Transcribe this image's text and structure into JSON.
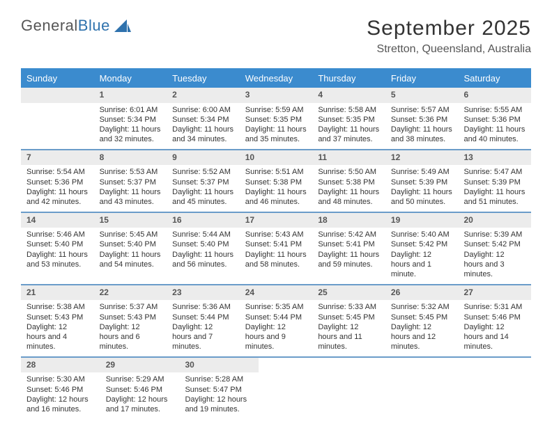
{
  "logo": {
    "text_a": "General",
    "text_b": "Blue",
    "text_color_a": "#565656",
    "text_color_b": "#2f72ad",
    "shape_color": "#2f72ad"
  },
  "title": {
    "month": "September 2025",
    "location": "Stretton, Queensland, Australia",
    "month_fontsize": 30,
    "loc_fontsize": 16
  },
  "colors": {
    "header_bg": "#3b8bce",
    "header_text": "#ffffff",
    "daynum_bg": "#ececec",
    "daynum_text": "#555555",
    "rule": "#6a9cc9",
    "body_text": "#333333",
    "bg": "#ffffff"
  },
  "typography": {
    "body_fontsize": 11,
    "header_fontsize": 13,
    "daynum_fontsize": 12
  },
  "weekday_header": [
    "Sunday",
    "Monday",
    "Tuesday",
    "Wednesday",
    "Thursday",
    "Friday",
    "Saturday"
  ],
  "weeks": [
    [
      {
        "empty": true
      },
      {
        "day": "1",
        "sunrise": "Sunrise: 6:01 AM",
        "sunset": "Sunset: 5:34 PM",
        "daylight": "Daylight: 11 hours and 32 minutes."
      },
      {
        "day": "2",
        "sunrise": "Sunrise: 6:00 AM",
        "sunset": "Sunset: 5:34 PM",
        "daylight": "Daylight: 11 hours and 34 minutes."
      },
      {
        "day": "3",
        "sunrise": "Sunrise: 5:59 AM",
        "sunset": "Sunset: 5:35 PM",
        "daylight": "Daylight: 11 hours and 35 minutes."
      },
      {
        "day": "4",
        "sunrise": "Sunrise: 5:58 AM",
        "sunset": "Sunset: 5:35 PM",
        "daylight": "Daylight: 11 hours and 37 minutes."
      },
      {
        "day": "5",
        "sunrise": "Sunrise: 5:57 AM",
        "sunset": "Sunset: 5:36 PM",
        "daylight": "Daylight: 11 hours and 38 minutes."
      },
      {
        "day": "6",
        "sunrise": "Sunrise: 5:55 AM",
        "sunset": "Sunset: 5:36 PM",
        "daylight": "Daylight: 11 hours and 40 minutes."
      }
    ],
    [
      {
        "day": "7",
        "sunrise": "Sunrise: 5:54 AM",
        "sunset": "Sunset: 5:36 PM",
        "daylight": "Daylight: 11 hours and 42 minutes."
      },
      {
        "day": "8",
        "sunrise": "Sunrise: 5:53 AM",
        "sunset": "Sunset: 5:37 PM",
        "daylight": "Daylight: 11 hours and 43 minutes."
      },
      {
        "day": "9",
        "sunrise": "Sunrise: 5:52 AM",
        "sunset": "Sunset: 5:37 PM",
        "daylight": "Daylight: 11 hours and 45 minutes."
      },
      {
        "day": "10",
        "sunrise": "Sunrise: 5:51 AM",
        "sunset": "Sunset: 5:38 PM",
        "daylight": "Daylight: 11 hours and 46 minutes."
      },
      {
        "day": "11",
        "sunrise": "Sunrise: 5:50 AM",
        "sunset": "Sunset: 5:38 PM",
        "daylight": "Daylight: 11 hours and 48 minutes."
      },
      {
        "day": "12",
        "sunrise": "Sunrise: 5:49 AM",
        "sunset": "Sunset: 5:39 PM",
        "daylight": "Daylight: 11 hours and 50 minutes."
      },
      {
        "day": "13",
        "sunrise": "Sunrise: 5:47 AM",
        "sunset": "Sunset: 5:39 PM",
        "daylight": "Daylight: 11 hours and 51 minutes."
      }
    ],
    [
      {
        "day": "14",
        "sunrise": "Sunrise: 5:46 AM",
        "sunset": "Sunset: 5:40 PM",
        "daylight": "Daylight: 11 hours and 53 minutes."
      },
      {
        "day": "15",
        "sunrise": "Sunrise: 5:45 AM",
        "sunset": "Sunset: 5:40 PM",
        "daylight": "Daylight: 11 hours and 54 minutes."
      },
      {
        "day": "16",
        "sunrise": "Sunrise: 5:44 AM",
        "sunset": "Sunset: 5:40 PM",
        "daylight": "Daylight: 11 hours and 56 minutes."
      },
      {
        "day": "17",
        "sunrise": "Sunrise: 5:43 AM",
        "sunset": "Sunset: 5:41 PM",
        "daylight": "Daylight: 11 hours and 58 minutes."
      },
      {
        "day": "18",
        "sunrise": "Sunrise: 5:42 AM",
        "sunset": "Sunset: 5:41 PM",
        "daylight": "Daylight: 11 hours and 59 minutes."
      },
      {
        "day": "19",
        "sunrise": "Sunrise: 5:40 AM",
        "sunset": "Sunset: 5:42 PM",
        "daylight": "Daylight: 12 hours and 1 minute."
      },
      {
        "day": "20",
        "sunrise": "Sunrise: 5:39 AM",
        "sunset": "Sunset: 5:42 PM",
        "daylight": "Daylight: 12 hours and 3 minutes."
      }
    ],
    [
      {
        "day": "21",
        "sunrise": "Sunrise: 5:38 AM",
        "sunset": "Sunset: 5:43 PM",
        "daylight": "Daylight: 12 hours and 4 minutes."
      },
      {
        "day": "22",
        "sunrise": "Sunrise: 5:37 AM",
        "sunset": "Sunset: 5:43 PM",
        "daylight": "Daylight: 12 hours and 6 minutes."
      },
      {
        "day": "23",
        "sunrise": "Sunrise: 5:36 AM",
        "sunset": "Sunset: 5:44 PM",
        "daylight": "Daylight: 12 hours and 7 minutes."
      },
      {
        "day": "24",
        "sunrise": "Sunrise: 5:35 AM",
        "sunset": "Sunset: 5:44 PM",
        "daylight": "Daylight: 12 hours and 9 minutes."
      },
      {
        "day": "25",
        "sunrise": "Sunrise: 5:33 AM",
        "sunset": "Sunset: 5:45 PM",
        "daylight": "Daylight: 12 hours and 11 minutes."
      },
      {
        "day": "26",
        "sunrise": "Sunrise: 5:32 AM",
        "sunset": "Sunset: 5:45 PM",
        "daylight": "Daylight: 12 hours and 12 minutes."
      },
      {
        "day": "27",
        "sunrise": "Sunrise: 5:31 AM",
        "sunset": "Sunset: 5:46 PM",
        "daylight": "Daylight: 12 hours and 14 minutes."
      }
    ],
    [
      {
        "day": "28",
        "sunrise": "Sunrise: 5:30 AM",
        "sunset": "Sunset: 5:46 PM",
        "daylight": "Daylight: 12 hours and 16 minutes."
      },
      {
        "day": "29",
        "sunrise": "Sunrise: 5:29 AM",
        "sunset": "Sunset: 5:46 PM",
        "daylight": "Daylight: 12 hours and 17 minutes."
      },
      {
        "day": "30",
        "sunrise": "Sunrise: 5:28 AM",
        "sunset": "Sunset: 5:47 PM",
        "daylight": "Daylight: 12 hours and 19 minutes."
      },
      {
        "void": true
      },
      {
        "void": true
      },
      {
        "void": true
      },
      {
        "void": true
      }
    ]
  ]
}
